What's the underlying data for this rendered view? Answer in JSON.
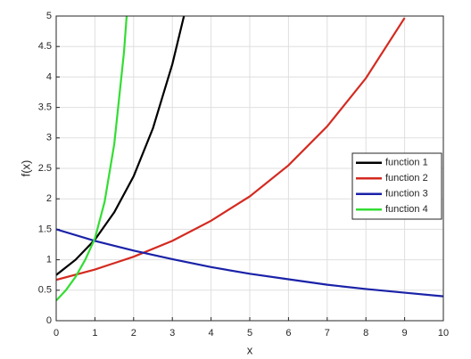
{
  "chart_data": {
    "type": "line",
    "xlabel": "x",
    "ylabel": "f(x)",
    "xlim": [
      0,
      10
    ],
    "ylim": [
      0,
      5
    ],
    "xticks": [
      0,
      1,
      2,
      3,
      4,
      5,
      6,
      7,
      8,
      9,
      10
    ],
    "yticks": [
      0,
      0.5,
      1,
      1.5,
      2,
      2.5,
      3,
      3.5,
      4,
      4.5,
      5
    ],
    "grid": true,
    "legend": "east",
    "series": [
      {
        "name": "function 1",
        "color": "#000000",
        "x": [
          0,
          0.5,
          1,
          1.5,
          2,
          2.5,
          3,
          3.3
        ],
        "values": [
          0.75,
          1.0,
          1.33,
          1.78,
          2.37,
          3.16,
          4.21,
          5.0
        ]
      },
      {
        "name": "function 2",
        "color": "#d42a20",
        "x": [
          0,
          1,
          2,
          3,
          4,
          5,
          6,
          7,
          8,
          9
        ],
        "values": [
          0.67,
          0.84,
          1.05,
          1.31,
          1.64,
          2.04,
          2.55,
          3.19,
          3.98,
          4.97
        ]
      },
      {
        "name": "function 3",
        "color": "#1a22a8",
        "x": [
          0,
          1,
          2,
          3,
          4,
          5,
          6,
          7,
          8,
          9,
          10
        ],
        "values": [
          1.5,
          1.31,
          1.15,
          1.01,
          0.88,
          0.77,
          0.68,
          0.59,
          0.52,
          0.46,
          0.4
        ]
      },
      {
        "name": "function 4",
        "color": "#33dd33",
        "x": [
          0,
          0.25,
          0.5,
          0.75,
          1,
          1.25,
          1.5,
          1.75,
          1.82
        ],
        "values": [
          0.33,
          0.5,
          0.72,
          1.0,
          1.35,
          1.95,
          2.9,
          4.4,
          5.0
        ]
      }
    ]
  }
}
